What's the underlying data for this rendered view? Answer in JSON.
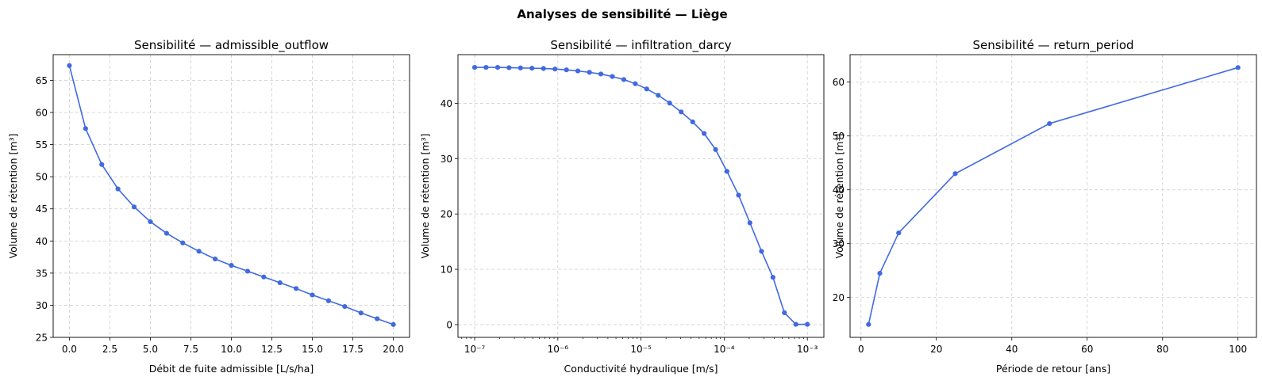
{
  "figure": {
    "suptitle": "Analyses de sensibilité — Liège"
  },
  "style": {
    "line_color": "#4169e1",
    "grid_color": "#d3d3d3"
  },
  "chart_data": [
    {
      "type": "line",
      "title": "Sensibilité — admissible_outflow",
      "xlabel": "Débit de fuite admissible [L/s/ha]",
      "ylabel": "Volume de rétention [m³]",
      "xscale": "linear",
      "xlim": [
        -1.0,
        21.0
      ],
      "ylim": [
        25,
        69
      ],
      "grid": true,
      "xticks": [
        0,
        2.5,
        5,
        7.5,
        10,
        12.5,
        15,
        17.5,
        20
      ],
      "xtick_labels": [
        "0.0",
        "2.5",
        "5.0",
        "7.5",
        "10.0",
        "12.5",
        "15.0",
        "17.5",
        "20.0"
      ],
      "yticks": [
        25,
        30,
        35,
        40,
        45,
        50,
        55,
        60,
        65
      ],
      "ytick_labels": [
        "25",
        "30",
        "35",
        "40",
        "45",
        "50",
        "55",
        "60",
        "65"
      ],
      "x": [
        0,
        1,
        2,
        3,
        4,
        5,
        6,
        7,
        8,
        9,
        10,
        11,
        12,
        13,
        14,
        15,
        16,
        17,
        18,
        19,
        20
      ],
      "y": [
        67.3,
        57.5,
        51.9,
        48.1,
        45.3,
        43.0,
        41.2,
        39.7,
        38.4,
        37.2,
        36.2,
        35.3,
        34.4,
        33.5,
        32.6,
        31.6,
        30.7,
        29.8,
        28.8,
        27.9,
        27.0
      ]
    },
    {
      "type": "line",
      "title": "Sensibilité — infiltration_darcy",
      "xlabel": "Conductivité hydraulique [m/s]",
      "ylabel": "Volume de rétention [m³]",
      "xscale": "log",
      "xlim": [
        6.3e-08,
        0.00158
      ],
      "ylim": [
        -2.3,
        48.8
      ],
      "grid": true,
      "xticks": [
        1e-07,
        1e-06,
        1e-05,
        0.0001,
        0.001
      ],
      "xtick_labels": [
        "10⁻⁷",
        "10⁻⁶",
        "10⁻⁵",
        "10⁻⁴",
        "10⁻³"
      ],
      "yticks": [
        0,
        10,
        20,
        30,
        40
      ],
      "ytick_labels": [
        "0",
        "10",
        "20",
        "30",
        "40"
      ],
      "x": [
        1e-07,
        1.37e-07,
        1.89e-07,
        2.59e-07,
        3.56e-07,
        4.89e-07,
        6.72e-07,
        9.24e-07,
        1.27e-06,
        1.74e-06,
        2.4e-06,
        3.29e-06,
        4.52e-06,
        6.21e-06,
        8.53e-06,
        1.17e-05,
        1.61e-05,
        2.21e-05,
        3.04e-05,
        4.18e-05,
        5.74e-05,
        7.88e-05,
        0.000108,
        0.000149,
        0.000204,
        0.000281,
        0.000386,
        0.00053,
        0.000728,
        0.001
      ],
      "y": [
        46.5,
        46.5,
        46.5,
        46.45,
        46.4,
        46.35,
        46.3,
        46.2,
        46.05,
        45.85,
        45.6,
        45.3,
        44.85,
        44.3,
        43.55,
        42.6,
        41.45,
        40.05,
        38.45,
        36.65,
        34.55,
        31.65,
        27.7,
        23.4,
        18.4,
        13.25,
        8.55,
        2.15,
        0.05,
        0.05
      ]
    },
    {
      "type": "line",
      "title": "Sensibilité — return_period",
      "xlabel": "Période de retour [ans]",
      "ylabel": "Volume de rétention [m³]",
      "xscale": "linear",
      "xlim": [
        -2.9,
        104.9
      ],
      "ylim": [
        12.6,
        65.1
      ],
      "grid": true,
      "xticks": [
        0,
        20,
        40,
        60,
        80,
        100
      ],
      "xtick_labels": [
        "0",
        "20",
        "40",
        "60",
        "80",
        "100"
      ],
      "yticks": [
        20,
        30,
        40,
        50,
        60
      ],
      "ytick_labels": [
        "20",
        "30",
        "40",
        "50",
        "60"
      ],
      "x": [
        2,
        5,
        10,
        25,
        50,
        100
      ],
      "y": [
        15.0,
        24.5,
        32.0,
        43.0,
        52.3,
        62.7
      ]
    }
  ]
}
